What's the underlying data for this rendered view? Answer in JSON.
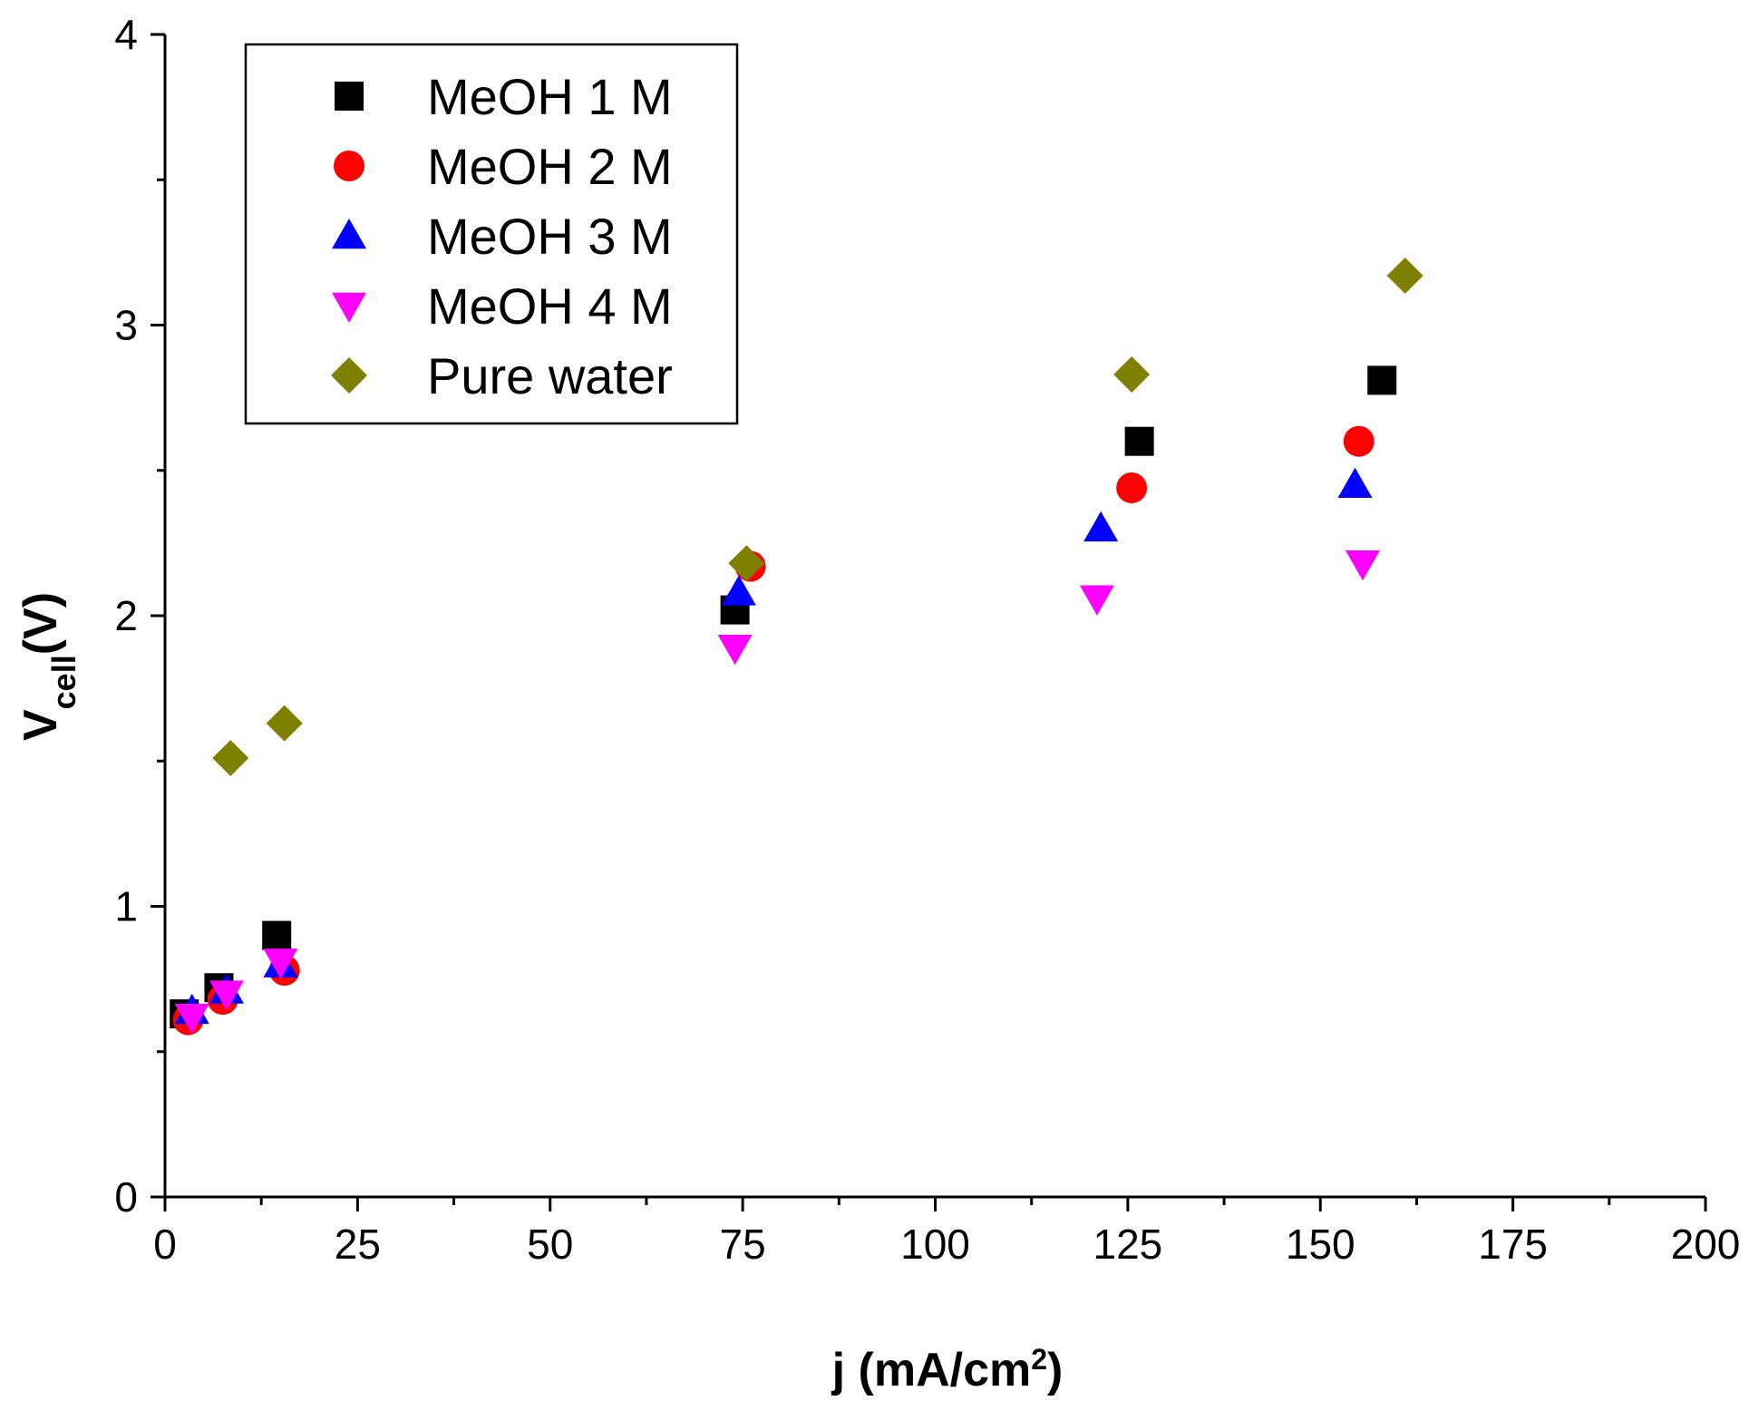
{
  "chart_data": {
    "type": "scatter",
    "title": "",
    "xlabel": {
      "main": "j (mA/cm",
      "sup": "2",
      "close": ")"
    },
    "ylabel": {
      "main": "V",
      "sub": "cell",
      "unit": "(V)"
    },
    "xlim": [
      0,
      200
    ],
    "ylim": [
      0,
      4
    ],
    "x_ticks": [
      0,
      25,
      50,
      75,
      100,
      125,
      150,
      175,
      200
    ],
    "x_tick_labels": [
      "0",
      "25",
      "50",
      "75",
      "100",
      "125",
      "150",
      "175",
      "200"
    ],
    "x_minor_ticks": [
      12.5,
      37.5,
      62.5,
      87.5,
      112.5,
      137.5,
      162.5,
      187.5
    ],
    "y_ticks": [
      0,
      1,
      2,
      3,
      4
    ],
    "y_tick_labels": [
      "0",
      "1",
      "2",
      "3",
      "4"
    ],
    "y_minor_ticks": [
      0.5,
      1.5,
      2.5,
      3.5
    ],
    "grid": false,
    "legend_position": "top-left",
    "series": [
      {
        "name": "MeOH 1 M",
        "marker": "square",
        "color": "#000000",
        "x": [
          2.5,
          7,
          14.5,
          74,
          126.5,
          158
        ],
        "y": [
          0.63,
          0.72,
          0.9,
          2.02,
          2.6,
          2.81
        ]
      },
      {
        "name": "MeOH 2 M",
        "marker": "circle",
        "color": "#ff0000",
        "x": [
          3,
          7.5,
          15.5,
          76,
          125.5,
          155
        ],
        "y": [
          0.61,
          0.68,
          0.78,
          2.17,
          2.44,
          2.6
        ]
      },
      {
        "name": "MeOH 3 M",
        "marker": "triangle-up",
        "color": "#0000ff",
        "x": [
          3.5,
          8,
          15,
          74.5,
          121.5,
          154.5
        ],
        "y": [
          0.64,
          0.71,
          0.8,
          2.08,
          2.3,
          2.45
        ]
      },
      {
        "name": "MeOH 4 M",
        "marker": "triangle-down",
        "color": "#ff00ff",
        "x": [
          3.5,
          8,
          15,
          74,
          121,
          155.5
        ],
        "y": [
          0.62,
          0.7,
          0.81,
          1.89,
          2.06,
          2.18
        ]
      },
      {
        "name": "Pure water",
        "marker": "diamond",
        "color": "#808000",
        "x": [
          8.5,
          15.5,
          75.5,
          125.5,
          161
        ],
        "y": [
          1.51,
          1.63,
          2.18,
          2.83,
          3.17
        ]
      }
    ]
  }
}
